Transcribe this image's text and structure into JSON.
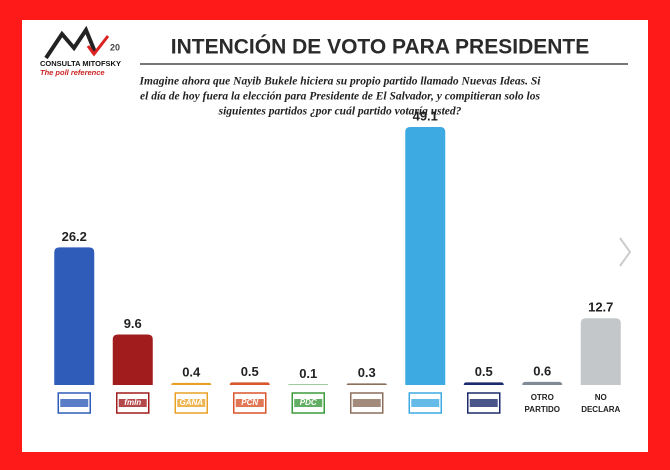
{
  "logo": {
    "name": "CONSULTA MITOFSKY",
    "tagline": "The poll reference",
    "years": "20"
  },
  "chart_data": {
    "type": "bar",
    "title": "INTENCIÓN DE VOTO PARA PRESIDENTE",
    "subtitle": [
      "Imagine ahora que Nayib Bukele hiciera su propio partido llamado Nuevas Ideas. Si",
      "el día de hoy fuera la elección para Presidente de El Salvador, y compitieran solo los",
      "siguientes partidos ¿por cuál partido votaría usted?"
    ],
    "categories": [
      null,
      "fmln",
      "GANA",
      "PCN",
      "PDC",
      null,
      null,
      null,
      "OTRO PARTIDO",
      "NO DECLARA"
    ],
    "values": [
      26.2,
      9.6,
      0.4,
      0.5,
      0.1,
      0.3,
      49.1,
      0.5,
      0.6,
      12.7
    ],
    "colors": [
      "#2f5cb8",
      "#a11c1c",
      "#e8a126",
      "#d9552b",
      "#3b9a3b",
      "#8c6e5b",
      "#3eaae2",
      "#1d2b6c",
      "#7f8b97",
      "#c3c7c9"
    ]
  }
}
